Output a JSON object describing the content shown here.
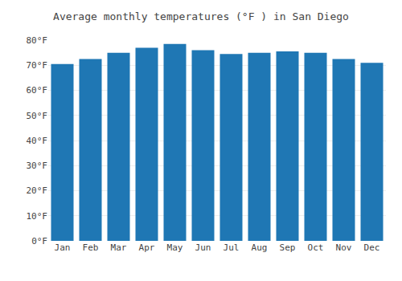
{
  "chart_data": {
    "type": "bar",
    "title": "Average monthly temperatures (°F ) in San Diego",
    "categories": [
      "Jan",
      "Feb",
      "Mar",
      "Apr",
      "May",
      "Jun",
      "Jul",
      "Aug",
      "Sep",
      "Oct",
      "Nov",
      "Dec"
    ],
    "values": [
      70.5,
      72.5,
      75.0,
      77.0,
      78.5,
      76.0,
      74.5,
      75.0,
      75.5,
      75.0,
      72.5,
      71.0
    ],
    "ylim": [
      0,
      80
    ],
    "yticks": [
      {
        "value": 0,
        "label": "0°F"
      },
      {
        "value": 10,
        "label": "10°F"
      },
      {
        "value": 20,
        "label": "20°F"
      },
      {
        "value": 30,
        "label": "30°F"
      },
      {
        "value": 40,
        "label": "40°F"
      },
      {
        "value": 50,
        "label": "50°F"
      },
      {
        "value": 60,
        "label": "60°F"
      },
      {
        "value": 70,
        "label": "70°F"
      },
      {
        "value": 80,
        "label": "80°F"
      }
    ],
    "grid": true
  }
}
